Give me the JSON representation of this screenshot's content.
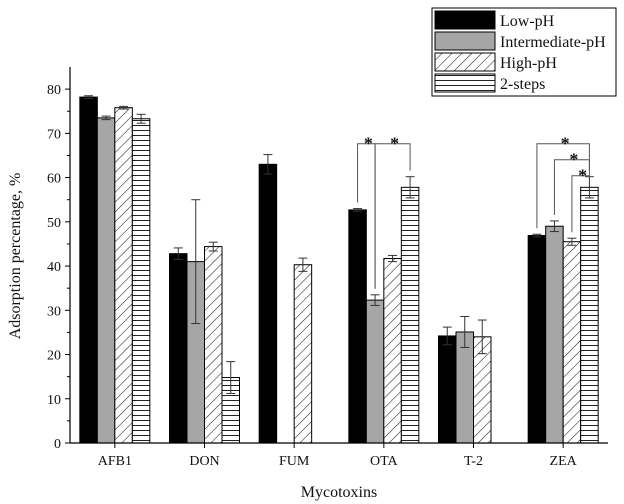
{
  "chart_data": {
    "type": "bar",
    "xlabel": "Mycotoxins",
    "ylabel": "Adsorption percentage, %",
    "ylim": [
      0,
      85
    ],
    "yticks": [
      0,
      10,
      20,
      30,
      40,
      50,
      60,
      70,
      80
    ],
    "categories": [
      "AFB1",
      "DON",
      "FUM",
      "OTA",
      "T-2",
      "ZEA"
    ],
    "legend_position": "top-right",
    "series": [
      {
        "name": "Low-pH",
        "pattern": "solid-black",
        "values": [
          78.2,
          42.8,
          63.0,
          52.7,
          24.2,
          46.9
        ],
        "errors": [
          0.3,
          1.3,
          2.2,
          0.3,
          2.0,
          0.3
        ]
      },
      {
        "name": "Intermediate-pH",
        "pattern": "solid-gray",
        "values": [
          73.5,
          41.0,
          null,
          32.3,
          25.1,
          49.0
        ],
        "errors": [
          0.4,
          14.0,
          null,
          1.2,
          3.5,
          1.2
        ]
      },
      {
        "name": "High-pH",
        "pattern": "diagonal-hatch",
        "values": [
          75.8,
          44.4,
          40.3,
          41.7,
          24.0,
          45.5
        ],
        "errors": [
          0.3,
          1.0,
          1.5,
          0.7,
          3.8,
          0.8
        ]
      },
      {
        "name": "2-steps",
        "pattern": "horizontal-hatch",
        "values": [
          73.3,
          14.8,
          null,
          57.8,
          null,
          57.8
        ],
        "errors": [
          1.0,
          3.6,
          null,
          2.4,
          null,
          2.4
        ]
      }
    ],
    "significance": [
      {
        "category": "OTA",
        "from_series": 0,
        "to_series": 1,
        "label": "*"
      },
      {
        "category": "OTA",
        "from_series": 1,
        "to_series": 3,
        "label": "*"
      },
      {
        "category": "ZEA",
        "from_series": 0,
        "to_series": 3,
        "label": "*"
      },
      {
        "category": "ZEA",
        "from_series": 1,
        "to_series": 3,
        "label": "*"
      },
      {
        "category": "ZEA",
        "from_series": 2,
        "to_series": 3,
        "label": "*"
      }
    ],
    "colors": {
      "solid-black": "#000000",
      "solid-gray": "#a6a6a6",
      "hatch-stroke": "#222222"
    }
  }
}
